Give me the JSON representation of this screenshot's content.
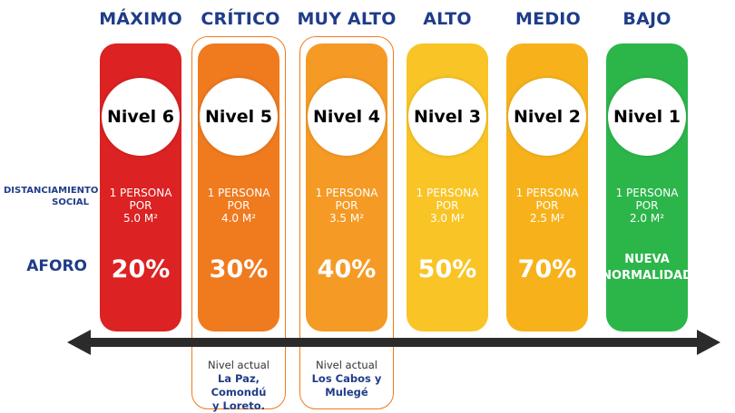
{
  "row_labels": {
    "distance_line1": "DISTANCIAMIENTO",
    "distance_line2": "SOCIAL",
    "aforo": "AFORO"
  },
  "levels": [
    {
      "header": "MÁXIMO",
      "name": "Nivel 6",
      "dist1": "1 PERSONA POR",
      "dist2": "5.0 M²",
      "aforo": "20%",
      "color": "#dc2222"
    },
    {
      "header": "CRÍTICO",
      "name": "Nivel 5",
      "dist1": "1 PERSONA POR",
      "dist2": "4.0 M²",
      "aforo": "30%",
      "color": "#f07a1e"
    },
    {
      "header": "MUY ALTO",
      "name": "Nivel 4",
      "dist1": "1 PERSONA POR",
      "dist2": "3.5 M²",
      "aforo": "40%",
      "color": "#f59a24"
    },
    {
      "header": "ALTO",
      "name": "Nivel 3",
      "dist1": "1 PERSONA POR",
      "dist2": "3.0 M²",
      "aforo": "50%",
      "color": "#f9c425"
    },
    {
      "header": "MEDIO",
      "name": "Nivel 2",
      "dist1": "1 PERSONA POR",
      "dist2": "2.5 M²",
      "aforo": "70%",
      "color": "#f7b21b"
    },
    {
      "header": "BAJO",
      "name": "Nivel 1",
      "dist1": "1 PERSONA POR",
      "dist2": "2.0 M²",
      "aforo1": "NUEVA",
      "aforo2": "NORMALIDAD",
      "color": "#2cb64a"
    }
  ],
  "notes": [
    {
      "title": "Nivel actual",
      "loc1": "La Paz, Comondú",
      "loc2": "y Loreto."
    },
    {
      "title": "Nivel actual",
      "loc1": "Los Cabos y",
      "loc2": "Mulegé"
    }
  ]
}
